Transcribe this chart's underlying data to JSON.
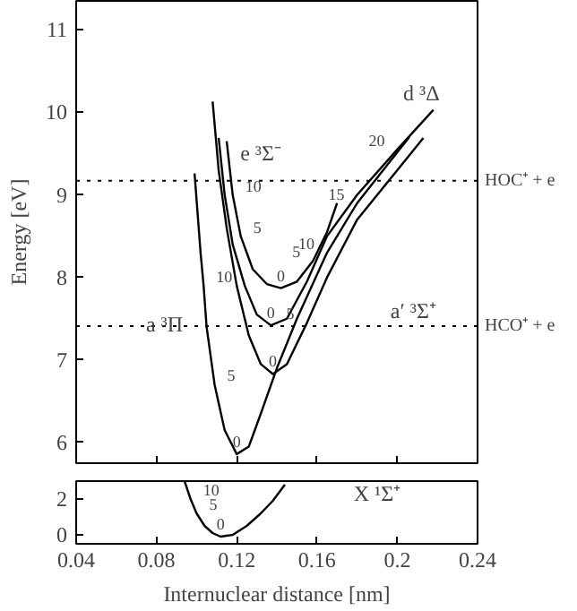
{
  "chart_data": [
    {
      "type": "line",
      "ylabel": "Energy [eV]",
      "xlim": [
        0.04,
        0.24
      ],
      "xticks": [
        0.04,
        0.08,
        0.12,
        0.16,
        0.2,
        0.24
      ],
      "ylim": [
        5.75,
        11.35
      ],
      "yticks": [
        6,
        7,
        8,
        9,
        10,
        11
      ],
      "tick_labels": "y",
      "grid": false,
      "marker": "none",
      "line_style": "solid",
      "series": [
        {
          "color": "#000000",
          "x": [
            0.115,
            0.118,
            0.122,
            0.128,
            0.135,
            0.142,
            0.15,
            0.158,
            0.165,
            0.17
          ],
          "values": [
            9.65,
            9.0,
            8.5,
            8.1,
            7.92,
            7.87,
            7.95,
            8.2,
            8.55,
            8.9
          ]
        },
        {
          "color": "#000000",
          "x": [
            0.111,
            0.114,
            0.118,
            0.124,
            0.13,
            0.137,
            0.145,
            0.155,
            0.165,
            0.18,
            0.2,
            0.218
          ],
          "values": [
            9.69,
            9.0,
            8.4,
            7.9,
            7.55,
            7.42,
            7.5,
            7.95,
            8.5,
            9.0,
            9.55,
            10.03
          ]
        },
        {
          "color": "#000000",
          "x": [
            0.108,
            0.111,
            0.115,
            0.12,
            0.126,
            0.132,
            0.138,
            0.145,
            0.155,
            0.165,
            0.18,
            0.2,
            0.213
          ],
          "values": [
            10.13,
            9.3,
            8.6,
            7.9,
            7.3,
            6.95,
            6.83,
            6.95,
            7.45,
            8.0,
            8.7,
            9.3,
            9.69
          ]
        },
        {
          "color": "#000000",
          "x": [
            0.099,
            0.102,
            0.1035,
            0.105,
            0.109,
            0.114,
            0.12,
            0.126,
            0.132,
            0.14,
            0.15,
            0.165,
            0.18,
            0.206
          ],
          "values": [
            9.26,
            8.3,
            7.9,
            7.4,
            6.7,
            6.15,
            5.86,
            5.95,
            6.35,
            6.9,
            7.5,
            8.3,
            8.9,
            9.7
          ]
        }
      ],
      "ref_lines": [
        {
          "axis": "y",
          "value": 9.17,
          "label": "HOC⁺ + e",
          "line_style": "dotted"
        },
        {
          "axis": "y",
          "value": 7.41,
          "label": "HCO⁺ + e",
          "line_style": "dotted"
        }
      ],
      "annotations": [
        "d ³Δ",
        "e ³Σ⁻",
        "a ³Π",
        "a′ ³Σ⁺",
        {
          "text": "0",
          "x": 0.142,
          "y": 7.87
        },
        {
          "text": "5",
          "x": 0.122,
          "y": 8.5
        },
        {
          "text": "10",
          "x": 0.118,
          "y": 9.0
        },
        {
          "text": "0",
          "x": 0.137,
          "y": 7.42
        },
        {
          "text": "0",
          "x": 0.138,
          "y": 6.83
        },
        {
          "text": "0",
          "x": 0.12,
          "y": 5.86
        },
        {
          "text": "5",
          "x": 0.109,
          "y": 6.7
        },
        {
          "text": "10",
          "x": 0.1035,
          "y": 7.9
        },
        {
          "text": "5",
          "x": 0.155,
          "y": 7.45
        },
        {
          "text": "5",
          "x": 0.158,
          "y": 8.2
        },
        {
          "text": "10",
          "x": 0.165,
          "y": 8.3
        },
        {
          "text": "15",
          "x": 0.18,
          "y": 8.9
        },
        {
          "text": "20",
          "x": 0.2,
          "y": 9.55
        }
      ]
    },
    {
      "type": "line",
      "xlabel": "Internuclear distance [nm]",
      "xlim": [
        0.04,
        0.24
      ],
      "xticks": [
        0.04,
        0.08,
        0.12,
        0.16,
        0.2,
        0.24
      ],
      "ylim": [
        -0.5,
        3
      ],
      "yticks": [
        0,
        2
      ],
      "grid": false,
      "marker": "none",
      "line_style": "solid",
      "series": [
        {
          "color": "#000000",
          "x": [
            0.094,
            0.097,
            0.1,
            0.104,
            0.108,
            0.112,
            0.118,
            0.125,
            0.132,
            0.138,
            0.144
          ],
          "values": [
            3.0,
            2.0,
            1.2,
            0.5,
            0.1,
            -0.1,
            0.0,
            0.5,
            1.2,
            1.9,
            2.8
          ]
        }
      ],
      "annotations": [
        "X ¹Σ⁺",
        {
          "text": "10",
          "x": 0.097,
          "y": 2.0
        },
        {
          "text": "5",
          "x": 0.1,
          "y": 1.2
        },
        {
          "text": "0",
          "x": 0.112,
          "y": -0.1
        }
      ]
    }
  ]
}
